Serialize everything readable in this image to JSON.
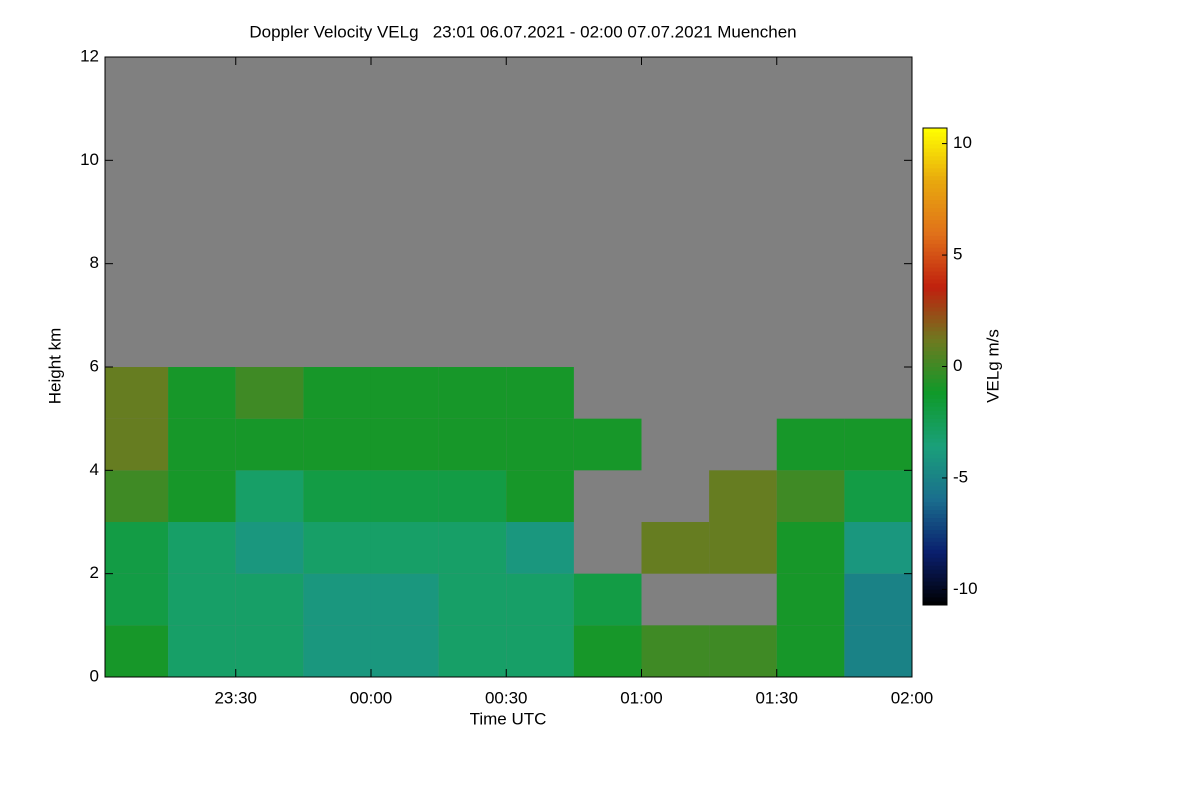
{
  "chart_data": {
    "type": "heatmap",
    "title": "Doppler Velocity VELg   23:01 06.07.2021 - 02:00 07.07.2021 Muenchen",
    "xlabel": "Time UTC",
    "ylabel": "Height km",
    "colorbar_label": "VELg m/s",
    "xlim": [
      -59,
      120
    ],
    "xticks": [
      {
        "value": -30,
        "label": "23:30"
      },
      {
        "value": 0,
        "label": "00:00"
      },
      {
        "value": 30,
        "label": "00:30"
      },
      {
        "value": 60,
        "label": "01:00"
      },
      {
        "value": 90,
        "label": "01:30"
      },
      {
        "value": 120,
        "label": "02:00"
      }
    ],
    "ylim": [
      0,
      12
    ],
    "yticks": [
      0,
      2,
      4,
      6,
      8,
      10,
      12
    ],
    "zlim": [
      -10.7,
      10.7
    ],
    "zticks": [
      -10,
      -5,
      0,
      5,
      10
    ],
    "colorscale": [
      "#000000",
      "#0a1f6e",
      "#1a6e8e",
      "#1aa07a",
      "#0f9a2a",
      "#6e7a20",
      "#c0200e",
      "#e0701a",
      "#e8a80e",
      "#ffff00"
    ],
    "background": "#808080",
    "x": [
      -52.5,
      -37.5,
      -22.5,
      -7.5,
      7.5,
      22.5,
      37.5,
      52.5,
      67.5,
      82.5,
      97.5,
      112.5
    ],
    "y": [
      0.5,
      1.5,
      2.5,
      3.5,
      4.5,
      5.5
    ],
    "z": [
      [
        -1,
        -3,
        -3,
        -4,
        -4,
        -3,
        -3,
        -1,
        0,
        0,
        -1,
        -5
      ],
      [
        -2,
        -3,
        -3,
        -4,
        -4,
        -3,
        -3,
        -2,
        null,
        null,
        -1,
        -5
      ],
      [
        -2,
        -3,
        -4,
        -3,
        -3,
        -3,
        -4,
        null,
        1,
        1,
        -1,
        -4
      ],
      [
        0,
        -1,
        -3,
        -2,
        -2,
        -2,
        -1,
        null,
        null,
        1,
        0,
        -2
      ],
      [
        1,
        -1,
        -1,
        -1,
        -1,
        -1,
        -1,
        -1,
        null,
        null,
        -1,
        -1
      ],
      [
        1,
        -1,
        0,
        -1,
        -1,
        -1,
        -1,
        null,
        null,
        null,
        null,
        null
      ]
    ]
  }
}
